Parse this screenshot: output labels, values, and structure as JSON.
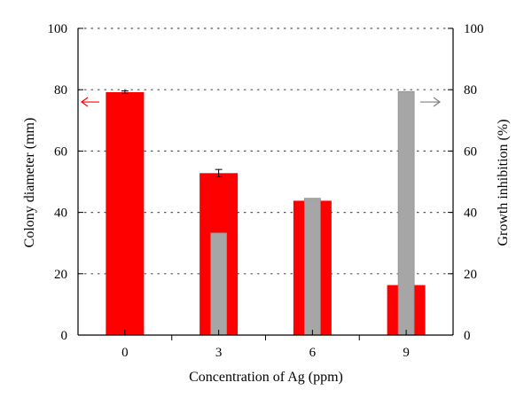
{
  "chart_data": {
    "type": "bar",
    "title": "",
    "xlabel": "Concentration of Ag (ppm)",
    "ylabel_left": "Colony diameter (mm)",
    "ylabel_right": "Growth inhibition (%)",
    "categories": [
      "0",
      "3",
      "6",
      "9"
    ],
    "ylim_left": [
      0,
      100
    ],
    "ylim_right": [
      0,
      100
    ],
    "yticks": [
      "0",
      "20",
      "40",
      "60",
      "80",
      "100"
    ],
    "grid": "horizontal dotted",
    "series": [
      {
        "axis": "left",
        "color": "#ff0000",
        "values": [
          79.2,
          52.8,
          43.8,
          16.3
        ],
        "errors": [
          0.4,
          1.2,
          0,
          0
        ]
      },
      {
        "axis": "right",
        "color": "#a6a6a6",
        "values": [
          null,
          33.3,
          44.6,
          79.4
        ],
        "errors": [
          0,
          0,
          0,
          0
        ]
      }
    ],
    "annotations": [
      {
        "type": "arrow",
        "direction": "left",
        "color": "#ff0000",
        "at_value": 79,
        "axis": "left"
      },
      {
        "type": "arrow",
        "direction": "right",
        "color": "#7f7f7f",
        "at_value": 79,
        "axis": "right"
      }
    ]
  }
}
